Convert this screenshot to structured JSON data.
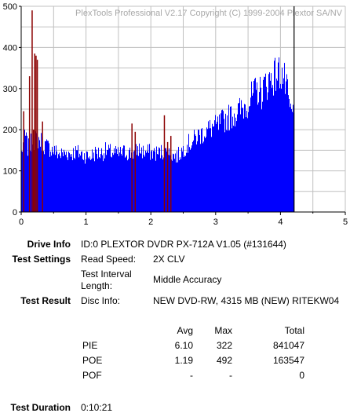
{
  "chart_data": {
    "type": "bar",
    "watermark": "PlexTools Professional V2.17 Copyright (C) 1999-2004 Plextor SA/NV",
    "ylim": [
      0,
      500
    ],
    "xlim": [
      0,
      5
    ],
    "y_ticks": [
      "0",
      "100",
      "200",
      "300",
      "400",
      "500"
    ],
    "x_ticks": [
      "0",
      "1",
      "2",
      "3",
      "4",
      "5"
    ],
    "grid": true,
    "end_marker_x": 4.21,
    "colors": {
      "pie": "#0000ff",
      "pof": "#8b0000",
      "marker": "#000000",
      "grid": "#c0c0c0"
    },
    "series": [
      {
        "id": "pie",
        "x_start": 0,
        "x_step": 0.05,
        "values": [
          150,
          200,
          160,
          175,
          180,
          185,
          180,
          170,
          165,
          160,
          155,
          150,
          145,
          148,
          150,
          148,
          150,
          152,
          148,
          145,
          142,
          140,
          145,
          150,
          148,
          150,
          155,
          152,
          150,
          148,
          146,
          150,
          152,
          150,
          148,
          150,
          160,
          155,
          150,
          152,
          150,
          150,
          148,
          152,
          150,
          150,
          145,
          143,
          140,
          150,
          160,
          170,
          175,
          180,
          190,
          195,
          200,
          205,
          210,
          215,
          215,
          220,
          230,
          235,
          240,
          245,
          250,
          255,
          260,
          270,
          280,
          290,
          300,
          310,
          300,
          320,
          330,
          340,
          345,
          350,
          355,
          335,
          300,
          250
        ]
      },
      {
        "id": "pof",
        "x": [
          0.03,
          0.12,
          0.16,
          0.18,
          0.2,
          0.22,
          0.24,
          0.32,
          1.7,
          1.75,
          2.2,
          2.25,
          2.3
        ],
        "values": [
          245,
          330,
          490,
          200,
          385,
          380,
          370,
          220,
          215,
          195,
          235,
          170,
          185
        ]
      }
    ]
  },
  "info": {
    "drive_info_label": "Drive Info",
    "drive_info_value": "ID:0 PLEXTOR DVDR PX-712A V1.05 (#131644)",
    "test_settings_label": "Test Settings",
    "read_speed_label": "Read Speed:",
    "read_speed_value": "2X CLV",
    "test_interval_label_1": "Test Interval",
    "test_interval_label_2": "Length:",
    "test_interval_value": "Middle Accuracy",
    "test_result_label": "Test Result",
    "disc_info_label": "Disc Info:",
    "disc_info_value": "NEW DVD-RW, 4315 MB (NEW) RITEKW04",
    "test_duration_label": "Test Duration",
    "test_duration_value": "0:10:21"
  },
  "results": {
    "headers": {
      "avg": "Avg",
      "max": "Max",
      "total": "Total"
    },
    "rows": [
      {
        "name": "PIE",
        "avg": "6.10",
        "max": "322",
        "total": "841047"
      },
      {
        "name": "POE",
        "avg": "1.19",
        "max": "492",
        "total": "163547"
      },
      {
        "name": "POF",
        "avg": "-",
        "max": "-",
        "total": "0"
      }
    ]
  }
}
